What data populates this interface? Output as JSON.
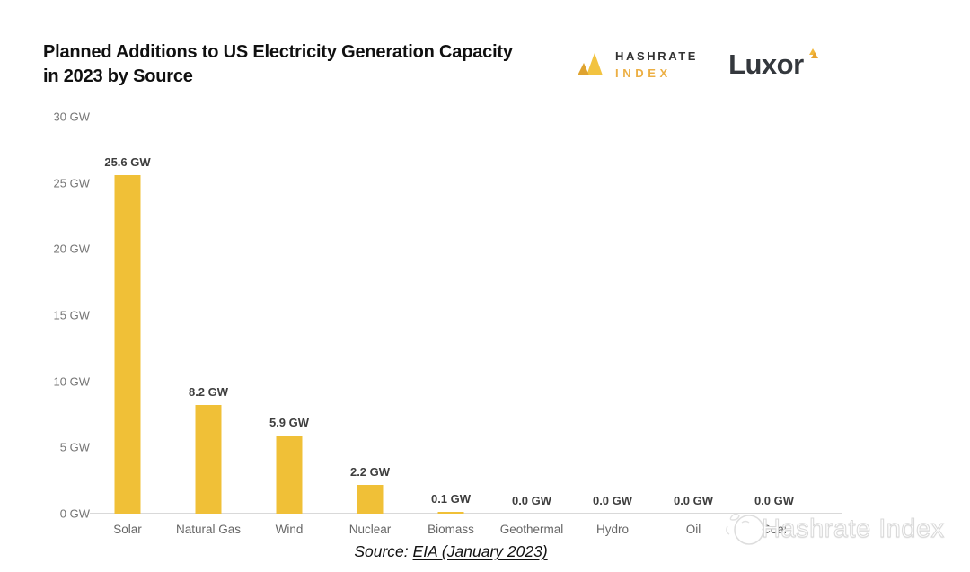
{
  "header": {
    "title": "Planned Additions to US Electricity Generation Capacity in 2023 by Source",
    "hashrate_logo": {
      "line1": "HASHRATE",
      "line2": "INDEX"
    },
    "luxor_logo": {
      "text": "Luxor"
    }
  },
  "chart_data": {
    "type": "bar",
    "title": "Planned Additions to US Electricity Generation Capacity in 2023 by Source",
    "categories": [
      "Solar",
      "Natural Gas",
      "Wind",
      "Nuclear",
      "Biomass",
      "Geothermal",
      "Hydro",
      "Oil",
      "Coal"
    ],
    "values": [
      25.6,
      8.2,
      5.9,
      2.2,
      0.1,
      0.0,
      0.0,
      0.0,
      0.0
    ],
    "value_labels": [
      "25.6 GW",
      "8.2 GW",
      "5.9 GW",
      "2.2 GW",
      "0.1 GW",
      "0.0 GW",
      "0.0 GW",
      "0.0 GW",
      "0.0 GW"
    ],
    "unit": "GW",
    "xlabel": "",
    "ylabel": "",
    "ylim": [
      0,
      30
    ],
    "ytick_values": [
      0,
      5,
      10,
      15,
      20,
      25,
      30
    ],
    "ytick_labels": [
      "0 GW",
      "5 GW",
      "10 GW",
      "15 GW",
      "20 GW",
      "25 GW",
      "30 GW"
    ],
    "grid": false,
    "legend": "none",
    "bar_color": "#F0C037"
  },
  "footer": {
    "source_prefix": "Source: ",
    "source_link": "EIA (January 2023)"
  },
  "watermark": {
    "text": "Hashrate Index"
  },
  "colors": {
    "accent_gold": "#F0C037",
    "logo_gold_dark": "#DFA32F",
    "logo_gold_light": "#F2C340",
    "axis_line": "#D9D9D9",
    "label_gray": "#666666",
    "tick_gray": "#757575",
    "value_label": "#3E3E3E",
    "title_color": "#101010"
  }
}
